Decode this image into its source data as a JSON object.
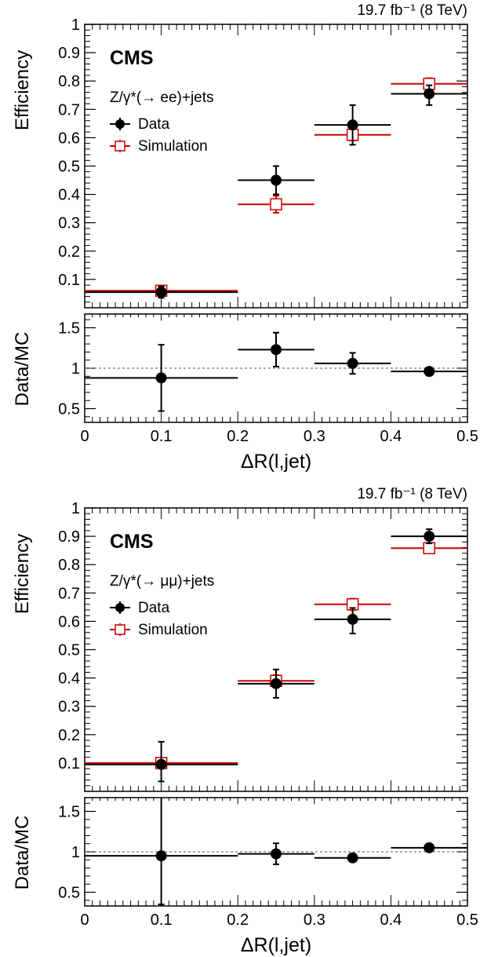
{
  "figure": {
    "panels": [
      {
        "lumi_label": "19.7 fb⁻¹ (8 TeV)",
        "cms_label": "CMS",
        "process_label": "Z/γ*(→ ee)+jets",
        "legend": [
          {
            "label": "Data",
            "marker": "filled-circle"
          },
          {
            "label": "Simulation",
            "marker": "open-square"
          }
        ],
        "ylabel_top": "Efficiency",
        "ylabel_bottom": "Data/MC",
        "xlabel": "ΔR(l,jet)"
      },
      {
        "lumi_label": "19.7 fb⁻¹ (8 TeV)",
        "cms_label": "CMS",
        "process_label": "Z/γ*(→ μμ)+jets",
        "legend": [
          {
            "label": "Data",
            "marker": "filled-circle"
          },
          {
            "label": "Simulation",
            "marker": "open-square"
          }
        ],
        "ylabel_top": "Efficiency",
        "ylabel_bottom": "Data/MC",
        "xlabel": "ΔR(l,jet)"
      }
    ]
  },
  "colors": {
    "data": "#000000",
    "simulation": "#cc0000",
    "reference_line": "#555555"
  },
  "chart_data": [
    {
      "type": "scatter",
      "title": "",
      "xlabel": "ΔR(l,jet)",
      "ylabel": "Efficiency",
      "xlim": [
        0,
        0.5
      ],
      "ylim": [
        0,
        1
      ],
      "yticks": [
        "0.1",
        "0.2",
        "0.3",
        "0.4",
        "0.5",
        "0.6",
        "0.7",
        "0.8",
        "0.9",
        "1"
      ],
      "series": [
        {
          "name": "Data",
          "points": [
            {
              "x": 0.1,
              "xerr": [
                0.1,
                0.1
              ],
              "y": 0.055,
              "yerr": [
                0.02,
                0.02
              ]
            },
            {
              "x": 0.25,
              "xerr": [
                0.05,
                0.05
              ],
              "y": 0.45,
              "yerr": [
                0.05,
                0.05
              ]
            },
            {
              "x": 0.35,
              "xerr": [
                0.05,
                0.05
              ],
              "y": 0.645,
              "yerr": [
                0.07,
                0.07
              ]
            },
            {
              "x": 0.45,
              "xerr": [
                0.05,
                0.05
              ],
              "y": 0.755,
              "yerr": [
                0.04,
                0.03
              ]
            }
          ]
        },
        {
          "name": "Simulation",
          "points": [
            {
              "x": 0.1,
              "xerr": [
                0.1,
                0.1
              ],
              "y": 0.06,
              "yerr": [
                0.01,
                0.01
              ]
            },
            {
              "x": 0.25,
              "xerr": [
                0.05,
                0.05
              ],
              "y": 0.365,
              "yerr": [
                0.03,
                0.03
              ]
            },
            {
              "x": 0.35,
              "xerr": [
                0.05,
                0.05
              ],
              "y": 0.61,
              "yerr": [
                0.02,
                0.02
              ]
            },
            {
              "x": 0.45,
              "xerr": [
                0.05,
                0.05
              ],
              "y": 0.79,
              "yerr": [
                0.02,
                0.02
              ]
            }
          ]
        }
      ],
      "ratio": {
        "ylabel": "Data/MC",
        "ylim": [
          0.33,
          1.67
        ],
        "yticks": [
          "0.5",
          "1",
          "1.5"
        ],
        "reference": 1,
        "xticks": [
          "0",
          "0.1",
          "0.2",
          "0.3",
          "0.4",
          "0.5"
        ],
        "points": [
          {
            "x": 0.1,
            "xerr": [
              0.1,
              0.1
            ],
            "y": 0.88,
            "yerr": [
              0.41,
              0.41
            ]
          },
          {
            "x": 0.25,
            "xerr": [
              0.05,
              0.05
            ],
            "y": 1.23,
            "yerr": [
              0.21,
              0.21
            ]
          },
          {
            "x": 0.35,
            "xerr": [
              0.05,
              0.05
            ],
            "y": 1.06,
            "yerr": [
              0.13,
              0.13
            ]
          },
          {
            "x": 0.45,
            "xerr": [
              0.05,
              0.05
            ],
            "y": 0.96,
            "yerr": [
              0.03,
              0.03
            ]
          }
        ]
      }
    },
    {
      "type": "scatter",
      "title": "",
      "xlabel": "ΔR(l,jet)",
      "ylabel": "Efficiency",
      "xlim": [
        0,
        0.5
      ],
      "ylim": [
        0,
        1
      ],
      "yticks": [
        "0.1",
        "0.2",
        "0.3",
        "0.4",
        "0.5",
        "0.6",
        "0.7",
        "0.8",
        "0.9",
        "1"
      ],
      "series": [
        {
          "name": "Data",
          "points": [
            {
              "x": 0.1,
              "xerr": [
                0.1,
                0.1
              ],
              "y": 0.095,
              "yerr": [
                0.06,
                0.08
              ]
            },
            {
              "x": 0.25,
              "xerr": [
                0.05,
                0.05
              ],
              "y": 0.38,
              "yerr": [
                0.05,
                0.05
              ]
            },
            {
              "x": 0.35,
              "xerr": [
                0.05,
                0.05
              ],
              "y": 0.607,
              "yerr": [
                0.05,
                0.04
              ]
            },
            {
              "x": 0.45,
              "xerr": [
                0.05,
                0.05
              ],
              "y": 0.9,
              "yerr": [
                0.025,
                0.025
              ]
            }
          ]
        },
        {
          "name": "Simulation",
          "points": [
            {
              "x": 0.1,
              "xerr": [
                0.1,
                0.1
              ],
              "y": 0.1,
              "yerr": [
                0.01,
                0.01
              ]
            },
            {
              "x": 0.25,
              "xerr": [
                0.05,
                0.05
              ],
              "y": 0.39,
              "yerr": [
                0.02,
                0.02
              ]
            },
            {
              "x": 0.35,
              "xerr": [
                0.05,
                0.05
              ],
              "y": 0.66,
              "yerr": [
                0.02,
                0.02
              ]
            },
            {
              "x": 0.45,
              "xerr": [
                0.05,
                0.05
              ],
              "y": 0.858,
              "yerr": [
                0.015,
                0.015
              ]
            }
          ]
        }
      ],
      "ratio": {
        "ylabel": "Data/MC",
        "ylim": [
          0.33,
          1.67
        ],
        "yticks": [
          "0.5",
          "1",
          "1.5"
        ],
        "reference": 1,
        "xticks": [
          "0",
          "0.1",
          "0.2",
          "0.3",
          "0.4",
          "0.5"
        ],
        "points": [
          {
            "x": 0.1,
            "xerr": [
              0.1,
              0.1
            ],
            "y": 0.95,
            "yerr": [
              0.6,
              0.75
            ]
          },
          {
            "x": 0.25,
            "xerr": [
              0.05,
              0.05
            ],
            "y": 0.975,
            "yerr": [
              0.13,
              0.13
            ]
          },
          {
            "x": 0.35,
            "xerr": [
              0.05,
              0.05
            ],
            "y": 0.925,
            "yerr": [
              0.05,
              0.05
            ]
          },
          {
            "x": 0.45,
            "xerr": [
              0.05,
              0.05
            ],
            "y": 1.05,
            "yerr": [
              0.02,
              0.02
            ]
          }
        ]
      }
    }
  ]
}
